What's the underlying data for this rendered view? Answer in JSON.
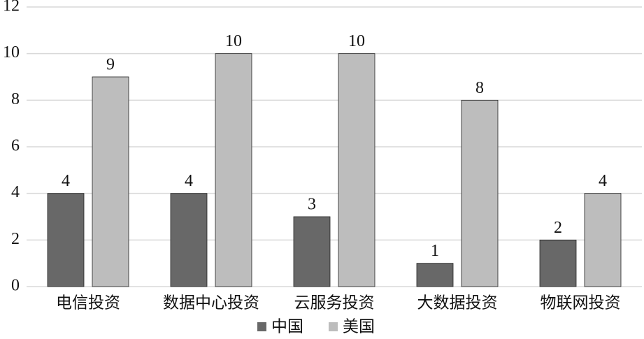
{
  "chart_data": {
    "type": "bar",
    "categories": [
      "电信投资",
      "数据中心投资",
      "云服务投资",
      "大数据投资",
      "物联网投资"
    ],
    "series": [
      {
        "name": "中国",
        "color": "#686868",
        "values": [
          4,
          4,
          3,
          1,
          2
        ]
      },
      {
        "name": "美国",
        "color": "#bdbdbd",
        "values": [
          9,
          10,
          10,
          8,
          4
        ]
      }
    ],
    "ylim": [
      0,
      12
    ],
    "yticks": [
      0,
      2,
      4,
      6,
      8,
      10,
      12
    ],
    "grid": true,
    "legend": "bottom"
  }
}
